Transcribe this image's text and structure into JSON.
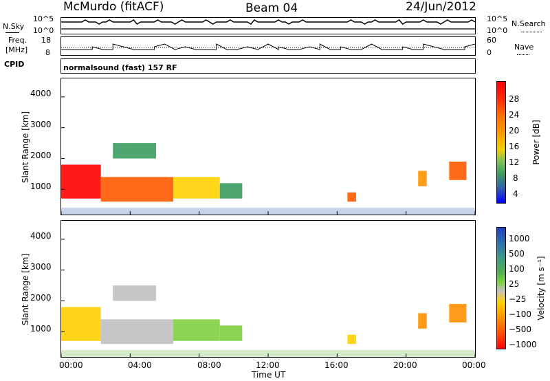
{
  "header": {
    "station": "McMurdo (fitACF)",
    "beam": "Beam 04",
    "date": "24/Jun/2012"
  },
  "top_panels": {
    "nsky_label": "N.Sky",
    "nsearch_label": "N.Search",
    "nsky_ticks": [
      "10^5",
      "10^0"
    ],
    "nsearch_ticks": [
      "10^5",
      "10^0"
    ],
    "freq_label": "Freq.",
    "freq_unit": "[MHz]",
    "freq_ticks": [
      "18",
      "8"
    ],
    "nave_label": "Nave",
    "nave_ticks": [
      "60",
      "0"
    ],
    "cpid_label": "CPID",
    "cpid_text": "normalsound (fast) 157 RF"
  },
  "axes": {
    "xlabel": "Time UT",
    "ylabel": "Slant Range [km]",
    "xticks": [
      "00:00",
      "04:00",
      "08:00",
      "12:00",
      "16:00",
      "20:00",
      "00:00"
    ],
    "yticks": [
      "1000",
      "2000",
      "3000",
      "4000"
    ]
  },
  "colorbars": {
    "power": {
      "label": "Power [dB]",
      "ticks": [
        "28",
        "24",
        "20",
        "16",
        "12",
        "8",
        "4"
      ],
      "colors": [
        "#ff0000",
        "#ff5a00",
        "#ff9400",
        "#ffd200",
        "#a8d048",
        "#3c9c60",
        "#3050b0",
        "#0000ff"
      ]
    },
    "velocity": {
      "label": "Velocity [m s⁻¹]",
      "ticks": [
        "1000",
        "500",
        "100",
        "25",
        "−25",
        "−100",
        "−500",
        "−1000"
      ],
      "colors": [
        "#2040c0",
        "#3c9c88",
        "#50b050",
        "#80d040",
        "#c0c0c0",
        "#ffd000",
        "#ff9000",
        "#ff5000",
        "#ff0000"
      ]
    }
  },
  "chart_data": [
    {
      "type": "heatmap",
      "title": "Power",
      "xlabel": "Time UT",
      "ylabel": "Slant Range [km]",
      "xlim": [
        0,
        24
      ],
      "ylim": [
        180,
        4600
      ],
      "colorbar_label": "Power [dB]",
      "colorbar_range": [
        0,
        30
      ],
      "regions": [
        {
          "t": [
            0.0,
            2.3
          ],
          "r": [
            700,
            1800
          ],
          "value": 28
        },
        {
          "t": [
            2.3,
            6.5
          ],
          "r": [
            600,
            1400
          ],
          "value": 26
        },
        {
          "t": [
            6.5,
            9.2
          ],
          "r": [
            700,
            1400
          ],
          "value": 16
        },
        {
          "t": [
            9.2,
            10.5
          ],
          "r": [
            700,
            1200
          ],
          "value": 10
        },
        {
          "t": [
            3.0,
            5.5
          ],
          "r": [
            2000,
            2500
          ],
          "value": 8
        },
        {
          "t": [
            16.6,
            17.1
          ],
          "r": [
            600,
            900
          ],
          "value": 24
        },
        {
          "t": [
            20.7,
            21.2
          ],
          "r": [
            1100,
            1600
          ],
          "value": 22
        },
        {
          "t": [
            22.5,
            23.5
          ],
          "r": [
            1300,
            1900
          ],
          "value": 24
        }
      ]
    },
    {
      "type": "heatmap",
      "title": "Velocity",
      "xlabel": "Time UT",
      "ylabel": "Slant Range [km]",
      "xlim": [
        0,
        24
      ],
      "ylim": [
        180,
        4600
      ],
      "colorbar_label": "Velocity [m s⁻¹]",
      "colorbar_range": [
        -1000,
        1000
      ],
      "regions": [
        {
          "t": [
            0.0,
            2.3
          ],
          "r": [
            700,
            1800
          ],
          "value": -300
        },
        {
          "t": [
            2.3,
            6.5
          ],
          "r": [
            600,
            1400
          ],
          "value": 50
        },
        {
          "t": [
            6.5,
            9.2
          ],
          "r": [
            700,
            1400
          ],
          "value": 150
        },
        {
          "t": [
            9.2,
            10.5
          ],
          "r": [
            700,
            1200
          ],
          "value": 300
        },
        {
          "t": [
            3.0,
            5.5
          ],
          "r": [
            2000,
            2500
          ],
          "value": -100
        },
        {
          "t": [
            16.6,
            17.1
          ],
          "r": [
            600,
            900
          ],
          "value": -150
        },
        {
          "t": [
            20.7,
            21.2
          ],
          "r": [
            1100,
            1600
          ],
          "value": -400
        },
        {
          "t": [
            22.5,
            23.5
          ],
          "r": [
            1300,
            1900
          ],
          "value": -600
        }
      ]
    }
  ]
}
